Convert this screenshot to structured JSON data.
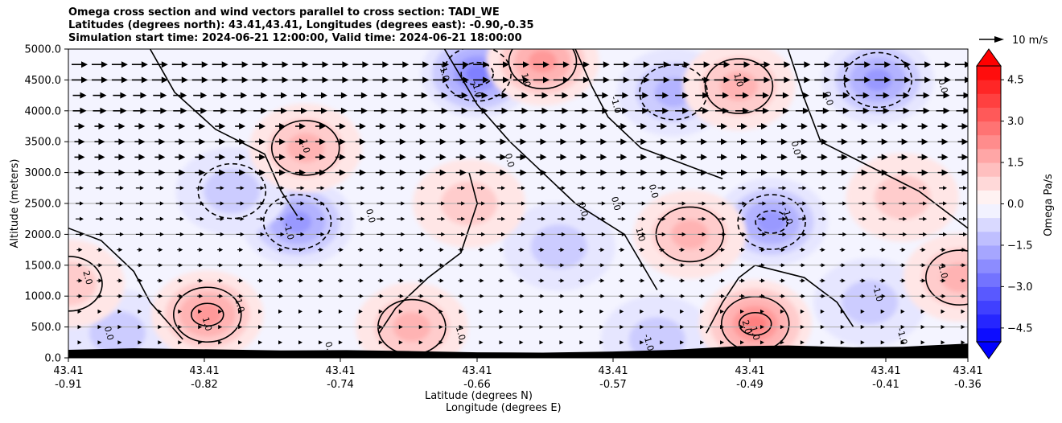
{
  "chart_data": {
    "type": "contour",
    "title_lines": [
      "Omega cross section and wind vectors parallel to cross section: TADI_WE",
      "Latitudes (degrees north): 43.41,43.41, Longitudes (degrees east): -0.90,-0.35",
      "Simulation start time: 2024-06-21 12:00:00, Valid time: 2024-06-21 18:00:00"
    ],
    "xlabel_line1": "Latitude (degrees N)",
    "xlabel_line2": "Longitude (degrees E)",
    "ylabel": "Altitude (meters)",
    "ylim": [
      0,
      5000
    ],
    "yticks": [
      "0.0",
      "500.0",
      "1000.0",
      "1500.0",
      "2000.0",
      "2500.0",
      "3000.0",
      "3500.0",
      "4000.0",
      "4500.0",
      "5000.0"
    ],
    "x_ticks": [
      {
        "lat": "43.41",
        "lon": "-0.91"
      },
      {
        "lat": "43.41",
        "lon": "-0.82"
      },
      {
        "lat": "43.41",
        "lon": "-0.74"
      },
      {
        "lat": "43.41",
        "lon": "-0.66"
      },
      {
        "lat": "43.41",
        "lon": "-0.57"
      },
      {
        "lat": "43.41",
        "lon": "-0.49"
      },
      {
        "lat": "43.41",
        "lon": "-0.41"
      },
      {
        "lat": "43.41",
        "lon": "-0.36"
      }
    ],
    "grid": "horizontal",
    "colorbar": {
      "label": "Omega Pa/s",
      "ticks": [
        "−4.5",
        "−3.0",
        "−1.5",
        "0.0",
        "1.5",
        "3.0",
        "4.5"
      ],
      "range": [
        -5.0,
        5.0
      ],
      "colormap": "bwr"
    },
    "wind_key": "10 m/s",
    "contour_labels": [
      "-1.0",
      "0.0",
      "1.0",
      "2.0"
    ],
    "omega_centers": [
      {
        "lon": -0.66,
        "alt": 4600,
        "value": -2.5
      },
      {
        "lon": -0.54,
        "alt": 4300,
        "value": -1.6
      },
      {
        "lon": -0.415,
        "alt": 4500,
        "value": -1.8
      },
      {
        "lon": -0.48,
        "alt": 2200,
        "value": -2.2
      },
      {
        "lon": -0.77,
        "alt": 2200,
        "value": -1.8
      },
      {
        "lon": -0.81,
        "alt": 2700,
        "value": -1.0
      },
      {
        "lon": -0.61,
        "alt": 1800,
        "value": -0.8
      },
      {
        "lon": -0.88,
        "alt": 400,
        "value": -0.8
      },
      {
        "lon": -0.55,
        "alt": 300,
        "value": -0.8
      },
      {
        "lon": -0.42,
        "alt": 900,
        "value": -0.8
      },
      {
        "lon": -0.62,
        "alt": 4800,
        "value": 1.8
      },
      {
        "lon": -0.5,
        "alt": 4400,
        "value": 1.5
      },
      {
        "lon": -0.765,
        "alt": 3400,
        "value": 1.5
      },
      {
        "lon": -0.53,
        "alt": 2000,
        "value": 1.6
      },
      {
        "lon": -0.825,
        "alt": 700,
        "value": 2.2
      },
      {
        "lon": -0.49,
        "alt": 550,
        "value": 2.4
      },
      {
        "lon": -0.7,
        "alt": 500,
        "value": 1.5
      },
      {
        "lon": -0.91,
        "alt": 1200,
        "value": 1.2
      },
      {
        "lon": -0.365,
        "alt": 1300,
        "value": 1.3
      },
      {
        "lon": -0.4,
        "alt": 2600,
        "value": 0.8
      },
      {
        "lon": -0.665,
        "alt": 2500,
        "value": 0.6
      }
    ],
    "terrain": [
      {
        "lon": -0.91,
        "alt": 130
      },
      {
        "lon": -0.87,
        "alt": 155
      },
      {
        "lon": -0.83,
        "alt": 140
      },
      {
        "lon": -0.78,
        "alt": 120
      },
      {
        "lon": -0.74,
        "alt": 125
      },
      {
        "lon": -0.7,
        "alt": 110
      },
      {
        "lon": -0.66,
        "alt": 90
      },
      {
        "lon": -0.62,
        "alt": 85
      },
      {
        "lon": -0.58,
        "alt": 100
      },
      {
        "lon": -0.54,
        "alt": 130
      },
      {
        "lon": -0.5,
        "alt": 190
      },
      {
        "lon": -0.47,
        "alt": 200
      },
      {
        "lon": -0.43,
        "alt": 170
      },
      {
        "lon": -0.4,
        "alt": 180
      },
      {
        "lon": -0.36,
        "alt": 230
      }
    ]
  }
}
